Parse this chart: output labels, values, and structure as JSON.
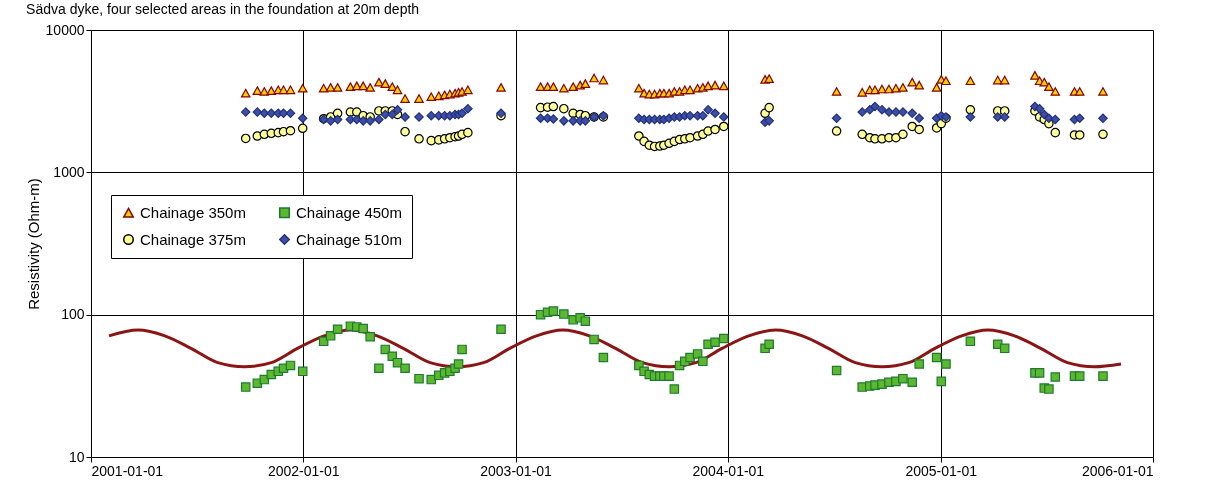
{
  "chart_data": {
    "type": "line",
    "title": "Sädva dyke, four selected areas in the foundation at 20m depth",
    "ylabel": "Resistivity (Ohm-m)",
    "log": "y",
    "grid": true,
    "legend": "left",
    "xlim": [
      "2001-01-01",
      "2006-01-01"
    ],
    "xticks": [
      "2001-01-01",
      "2002-01-01",
      "2003-01-01",
      "2004-01-01",
      "2005-01-01",
      "2006-01-01"
    ],
    "ylim": [
      10,
      10000
    ],
    "yticks": [
      10,
      100,
      1000,
      10000
    ],
    "x": [
      "2001-09-24",
      "2001-10-14",
      "2001-10-26",
      "2001-11-07",
      "2001-11-19",
      "2001-11-28",
      "2001-12-10",
      "2001-12-20",
      "2001-12-31",
      "2002-01-20",
      "2002-02-05",
      "2002-02-17",
      "2002-03-01",
      "2002-03-23",
      "2002-04-03",
      "2002-04-14",
      "2002-04-26",
      "2002-05-11",
      "2002-05-22",
      "2002-06-03",
      "2002-06-12",
      "2002-06-25",
      "2002-07-08",
      "2002-07-19",
      "2002-08-09",
      "2002-08-22",
      "2002-09-01",
      "2002-09-10",
      "2002-09-19",
      "2002-09-25",
      "2002-10-01",
      "2002-10-11",
      "2002-11-01",
      "2002-12-07",
      "2003-01-15",
      "2003-02-13",
      "2003-02-25",
      "2003-03-07",
      "2003-03-25",
      "2003-04-10",
      "2003-04-22",
      "2003-05-01",
      "2003-05-16",
      "2003-06-01",
      "2003-07-01",
      "2003-08-01",
      "2003-08-10",
      "2003-08-19",
      "2003-08-28",
      "2003-09-06",
      "2003-09-13",
      "2003-09-22",
      "2003-10-01",
      "2003-10-10",
      "2003-10-19",
      "2003-10-28",
      "2003-11-10",
      "2003-11-19",
      "2003-11-28",
      "2003-12-10",
      "2003-12-25",
      "2004-01-20",
      "2004-03-05",
      "2004-03-12",
      "2004-05-01",
      "2004-07-06",
      "2004-08-01",
      "2004-08-19",
      "2004-09-01",
      "2004-09-10",
      "2004-09-22",
      "2004-10-04",
      "2004-10-16",
      "2004-10-28",
      "2004-11-13",
      "2004-11-25",
      "2004-12-25",
      "2005-01-02",
      "2005-01-10",
      "2005-02-01",
      "2005-02-21",
      "2005-03-15",
      "2005-04-09",
      "2005-04-21",
      "2005-05-15",
      "2005-06-12",
      "2005-06-20",
      "2005-06-28",
      "2005-07-06",
      "2005-07-17",
      "2005-08-01",
      "2005-08-19",
      "2005-08-28",
      "2005-09-15",
      "2005-10-07"
    ],
    "series": [
      {
        "name": "Chainage 350m",
        "type": "scatter",
        "color": "#f5d000",
        "marker": "triangle",
        "values": [
          3600,
          3750,
          3700,
          3750,
          3800,
          3800,
          3800,
          null,
          3900,
          null,
          3900,
          3950,
          3950,
          4000,
          4050,
          4050,
          3950,
          4300,
          4200,
          4000,
          3800,
          3300,
          null,
          3300,
          3400,
          3450,
          3500,
          3550,
          3600,
          3650,
          3700,
          3800,
          null,
          3950,
          null,
          4000,
          4000,
          4000,
          3900,
          4000,
          4100,
          4200,
          4600,
          4450,
          null,
          3900,
          3600,
          3550,
          3550,
          3600,
          3600,
          3600,
          3700,
          3700,
          3800,
          3800,
          3900,
          3950,
          4050,
          4100,
          4050,
          null,
          4500,
          4550,
          null,
          3700,
          null,
          3650,
          3800,
          3800,
          3850,
          3850,
          3900,
          3950,
          4300,
          4100,
          3950,
          4500,
          4400,
          null,
          4400,
          null,
          4450,
          4450,
          null,
          4800,
          4400,
          4300,
          4000,
          3700,
          null,
          3700,
          3700,
          null,
          3700
        ]
      },
      {
        "name": "Chainage 375m",
        "type": "scatter",
        "color": "#ffff99",
        "marker": "circle",
        "values": [
          1730,
          1800,
          1850,
          1880,
          1900,
          1930,
          1960,
          null,
          2040,
          null,
          2380,
          2450,
          2600,
          2650,
          2650,
          2500,
          2450,
          2700,
          2700,
          2700,
          2550,
          1930,
          null,
          1720,
          1670,
          1690,
          1720,
          1750,
          1780,
          1800,
          1850,
          1900,
          null,
          2500,
          null,
          2850,
          2870,
          2900,
          2800,
          2600,
          2550,
          2500,
          2450,
          2450,
          null,
          1800,
          1650,
          1550,
          1520,
          1530,
          1550,
          1600,
          1650,
          1700,
          1720,
          1750,
          1800,
          1850,
          1950,
          2000,
          2100,
          null,
          2600,
          2850,
          null,
          1950,
          null,
          1850,
          1750,
          1720,
          1720,
          1750,
          1750,
          1850,
          2100,
          2000,
          2050,
          2200,
          2400,
          null,
          2750,
          null,
          2700,
          2700,
          null,
          2700,
          2450,
          2350,
          2200,
          1900,
          null,
          1830,
          1830,
          null,
          1850
        ]
      },
      {
        "name": "Chainage 450m",
        "type": "scatter",
        "color": "#5cb82e",
        "marker": "square",
        "values": [
          31,
          33,
          35,
          38,
          40,
          42,
          44,
          null,
          40,
          null,
          65,
          71,
          79,
          83,
          82,
          80,
          70,
          42,
          57,
          51,
          46,
          42,
          null,
          35.5,
          35,
          37.5,
          39,
          40,
          42,
          45,
          57,
          null,
          null,
          79,
          null,
          100,
          104,
          106,
          101,
          92,
          95,
          90,
          67,
          50,
          null,
          44,
          40,
          38,
          37,
          37,
          37,
          37,
          30,
          44,
          47,
          50,
          53,
          47,
          62,
          64,
          68,
          null,
          58,
          62,
          null,
          40.5,
          null,
          31,
          31.5,
          32,
          32.5,
          33.5,
          34,
          35.5,
          33.5,
          45,
          50,
          34,
          45,
          null,
          65,
          null,
          62,
          58,
          null,
          39,
          39,
          30.5,
          30,
          36.5,
          null,
          37,
          37,
          null,
          37
        ]
      },
      {
        "name": "Chainage 510m",
        "type": "scatter",
        "color": "#3a4fa8",
        "marker": "diamond",
        "values": [
          2650,
          2650,
          2600,
          2600,
          2600,
          2600,
          2600,
          null,
          2400,
          null,
          2350,
          2300,
          2350,
          2350,
          2350,
          2300,
          2300,
          2350,
          2550,
          2550,
          2750,
          2450,
          null,
          2450,
          2500,
          2500,
          2500,
          2500,
          2550,
          2550,
          2600,
          2800,
          null,
          2600,
          null,
          2400,
          2400,
          2370,
          2300,
          2300,
          2300,
          2300,
          2450,
          2500,
          null,
          2400,
          2350,
          2350,
          2350,
          2350,
          2350,
          2400,
          2450,
          2450,
          2500,
          2500,
          2500,
          2500,
          2750,
          2600,
          2450,
          null,
          2250,
          2300,
          null,
          2400,
          null,
          2650,
          2750,
          2900,
          2750,
          2650,
          2650,
          2650,
          2600,
          2400,
          2400,
          2500,
          2450,
          null,
          2450,
          null,
          2450,
          2450,
          null,
          2900,
          2800,
          2550,
          2400,
          2350,
          null,
          2350,
          2400,
          null,
          2400
        ]
      },
      {
        "color": "#8b1414",
        "marker": "none",
        "line_style": "solid",
        "x": [
          "2001-02-01",
          "2001-03-23",
          "2001-05-08",
          "2001-06-22",
          "2001-08-07",
          "2001-09-22",
          "2001-11-07",
          "2001-12-22",
          "2002-02-06",
          "2002-03-23",
          "2002-05-08",
          "2002-06-22",
          "2002-08-07",
          "2002-09-22",
          "2002-11-07",
          "2002-12-22",
          "2003-02-06",
          "2003-03-23",
          "2003-05-08",
          "2003-06-22",
          "2003-08-07",
          "2003-09-22",
          "2003-11-07",
          "2003-12-22",
          "2004-02-06",
          "2004-03-23",
          "2004-05-08",
          "2004-06-22",
          "2004-08-07",
          "2004-09-22",
          "2004-11-07",
          "2004-12-22",
          "2005-02-06",
          "2005-03-23",
          "2005-05-08",
          "2005-06-22",
          "2005-08-07",
          "2005-09-22",
          "2005-11-07"
        ],
        "values": [
          71,
          78,
          71,
          58,
          46,
          43,
          46,
          58,
          71,
          78,
          71,
          58,
          46,
          43,
          46,
          58,
          71,
          78,
          71,
          58,
          46,
          43,
          46,
          58,
          71,
          78,
          71,
          58,
          46,
          43,
          46,
          58,
          71,
          78,
          71,
          58,
          46,
          43,
          45
        ]
      }
    ]
  }
}
